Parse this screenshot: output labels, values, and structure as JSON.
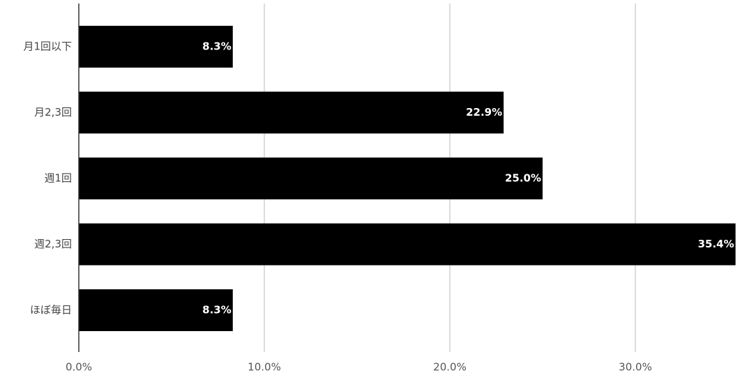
{
  "chart_data": {
    "type": "hbar",
    "categories": [
      "月1回以下",
      "月2,3回",
      "週1回",
      "週2,3回",
      "ほぼ毎日"
    ],
    "values": [
      8.3,
      22.9,
      25.0,
      35.4,
      8.3
    ],
    "value_labels": [
      "8.3%",
      "22.9%",
      "25.0%",
      "35.4%",
      "8.3%"
    ],
    "color": "#000000",
    "xlim": [
      0,
      36
    ],
    "xticks": [
      {
        "value": 0,
        "label": "0.0%"
      },
      {
        "value": 10,
        "label": "10.0%"
      },
      {
        "value": 20,
        "label": "20.0%"
      },
      {
        "value": 30,
        "label": "30.0%"
      }
    ],
    "grid": true
  }
}
